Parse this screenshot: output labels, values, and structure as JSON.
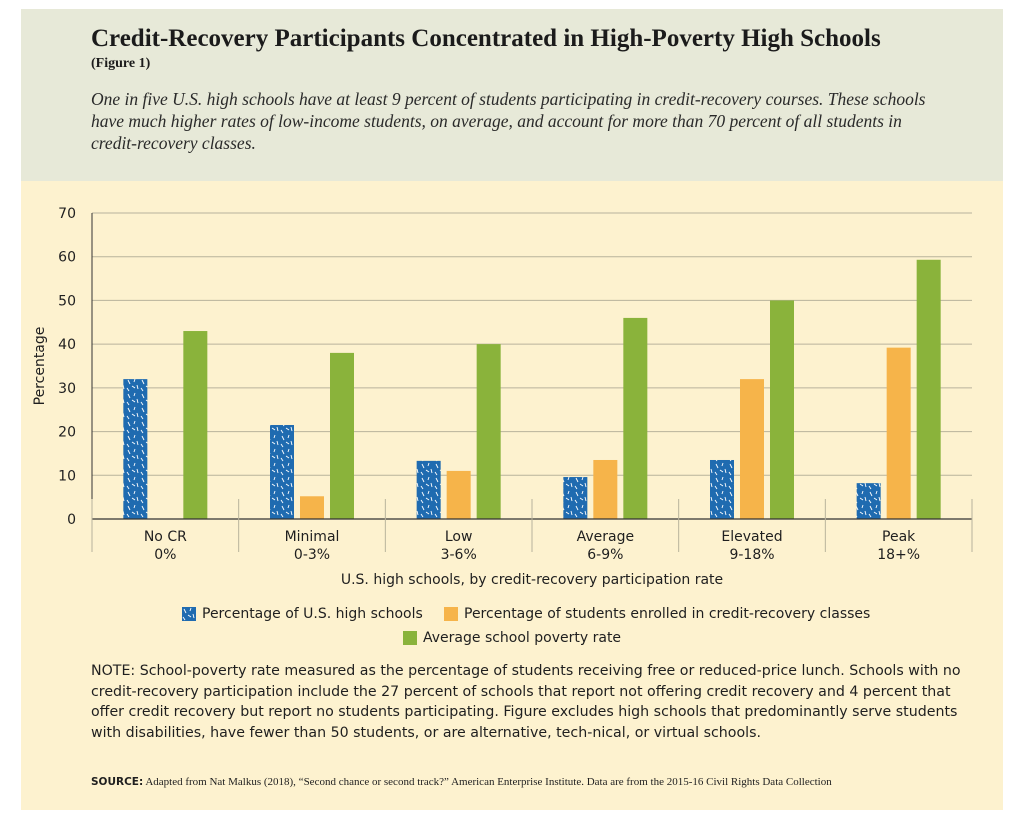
{
  "header": {
    "title": "Credit-Recovery Participants Concentrated in High-Poverty High Schools",
    "figure_label": "(Figure 1)",
    "subtitle": "One in five U.S. high schools have at least 9 percent of students participating in credit-recovery courses. These schools have much higher rates of low-income students, on average, and account for more than 70 percent of all students in credit-recovery classes."
  },
  "colors": {
    "blue": "#1f6bb0",
    "orange": "#f6b44a",
    "green": "#8ab33b",
    "grid": "#b8b39c",
    "axis": "#333333"
  },
  "chart_data": {
    "type": "bar",
    "xlabel": "U.S. high schools, by credit-recovery participation rate",
    "ylabel": "Percentage",
    "ylim": [
      0,
      70
    ],
    "yticks": [
      0,
      10,
      20,
      30,
      40,
      50,
      60,
      70
    ],
    "grid": true,
    "categories": [
      {
        "name": "No CR",
        "range": "0%"
      },
      {
        "name": "Minimal",
        "range": "0-3%"
      },
      {
        "name": "Low",
        "range": "3-6%"
      },
      {
        "name": "Average",
        "range": "6-9%"
      },
      {
        "name": "Elevated",
        "range": "9-18%"
      },
      {
        "name": "Peak",
        "range": "18+%"
      }
    ],
    "series": [
      {
        "name": "Percentage of U.S. high schools",
        "color": "#1f6bb0",
        "pattern": "speckled",
        "values": [
          32,
          21.5,
          13.3,
          9.6,
          13.5,
          8.2
        ]
      },
      {
        "name": "Percentage of students enrolled in credit-recovery classes",
        "color": "#f6b44a",
        "values": [
          0,
          5.2,
          11,
          13.5,
          32,
          39.2
        ]
      },
      {
        "name": "Average school poverty rate",
        "color": "#8ab33b",
        "values": [
          43,
          38,
          40,
          46,
          50,
          59.3
        ]
      }
    ],
    "legend_position": "bottom"
  },
  "note": "NOTE: School-poverty rate measured as the percentage of students receiving free or reduced-price lunch. Schools with no credit-recovery participation include the 27 percent of schools that report not offering credit recovery and 4 percent that offer credit recovery but report no students participating. Figure excludes high schools that predominantly serve students with disabilities, have fewer than 50 students, or are alternative, tech-nical, or virtual schools.",
  "source": {
    "label": "SOURCE:",
    "text": " Adapted from Nat Malkus (2018), “Second chance or second track?” American Enterprise Institute. Data are from the 2015-16 Civil Rights Data Collection"
  }
}
